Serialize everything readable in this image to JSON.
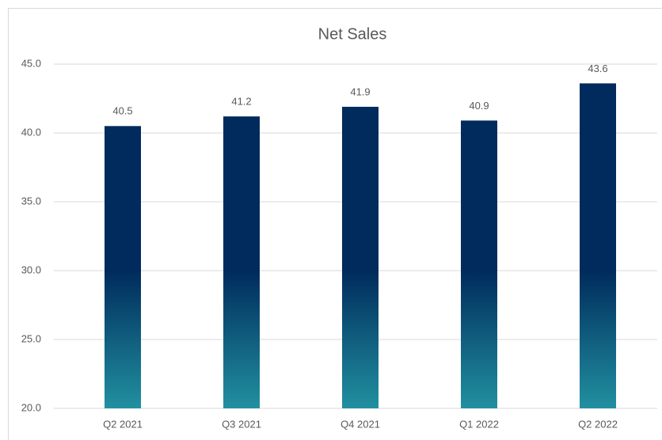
{
  "chart_data": {
    "type": "bar",
    "title": "Net Sales",
    "categories": [
      "Q2 2021",
      "Q3 2021",
      "Q4 2021",
      "Q1 2022",
      "Q2 2022"
    ],
    "values": [
      40.5,
      41.2,
      41.9,
      40.9,
      43.6
    ],
    "color": "#002b5c",
    "gradient_color": "#2190a0",
    "ylim": [
      20,
      45
    ],
    "yticks": [
      {
        "value": 20,
        "label": "20.0"
      },
      {
        "value": 25,
        "label": "25.0"
      },
      {
        "value": 30,
        "label": "30.0"
      },
      {
        "value": 35,
        "label": "35.0"
      },
      {
        "value": 40,
        "label": "40.0"
      },
      {
        "value": 45,
        "label": "45.0"
      }
    ],
    "grid": true,
    "data_labels": true
  }
}
